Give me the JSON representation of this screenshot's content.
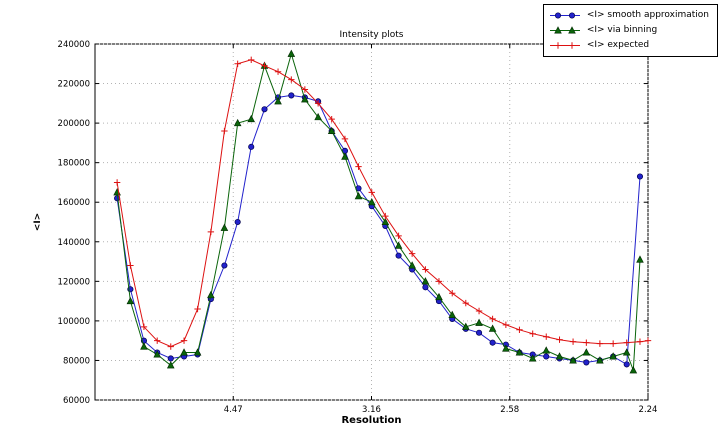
{
  "chart_data": {
    "type": "line",
    "title": "Intensity plots",
    "xlabel": "Resolution",
    "ylabel": "<I>",
    "grid": true,
    "legend_position": "upper right outside plot",
    "x_axis_unit": "reciprocal resolution (linear in 1/d^2), labels show d in Angstrom",
    "x_range": [
      0,
      0.2
    ],
    "y_range": [
      60000,
      240000
    ],
    "x_ticks": [
      {
        "x": 0.05,
        "label": "4.47"
      },
      {
        "x": 0.1,
        "label": "3.16"
      },
      {
        "x": 0.15,
        "label": "2.58"
      },
      {
        "x": 0.2,
        "label": "2.24"
      }
    ],
    "y_ticks": [
      {
        "y": 60000,
        "label": "60000"
      },
      {
        "y": 80000,
        "label": "80000"
      },
      {
        "y": 100000,
        "label": "100000"
      },
      {
        "y": 120000,
        "label": "120000"
      },
      {
        "y": 140000,
        "label": "140000"
      },
      {
        "y": 160000,
        "label": "160000"
      },
      {
        "y": 180000,
        "label": "180000"
      },
      {
        "y": 200000,
        "label": "200000"
      },
      {
        "y": 220000,
        "label": "220000"
      },
      {
        "y": 240000,
        "label": "240000"
      }
    ],
    "grid_color": "#b3b3b3",
    "series": [
      {
        "name": "smooth",
        "label": "<I> smooth approximation",
        "color": "#2222cc",
        "marker": "circle",
        "points": [
          [
            0.008,
            162000
          ],
          [
            0.0128,
            116000
          ],
          [
            0.0177,
            90000
          ],
          [
            0.0225,
            84000
          ],
          [
            0.0274,
            81000
          ],
          [
            0.0322,
            82000
          ],
          [
            0.0371,
            83000
          ],
          [
            0.0419,
            111000
          ],
          [
            0.0468,
            128000
          ],
          [
            0.0516,
            150000
          ],
          [
            0.0565,
            188000
          ],
          [
            0.0613,
            207000
          ],
          [
            0.0662,
            213000
          ],
          [
            0.071,
            214000
          ],
          [
            0.0759,
            213000
          ],
          [
            0.0807,
            211000
          ],
          [
            0.0856,
            196000
          ],
          [
            0.0904,
            186000
          ],
          [
            0.0953,
            167000
          ],
          [
            0.1001,
            158000
          ],
          [
            0.105,
            148000
          ],
          [
            0.1098,
            133000
          ],
          [
            0.1147,
            126000
          ],
          [
            0.1195,
            117000
          ],
          [
            0.1244,
            110000
          ],
          [
            0.1292,
            101000
          ],
          [
            0.1341,
            96000
          ],
          [
            0.1389,
            94000
          ],
          [
            0.1438,
            89000
          ],
          [
            0.1486,
            88000
          ],
          [
            0.1535,
            84000
          ],
          [
            0.1583,
            83000
          ],
          [
            0.1632,
            82000
          ],
          [
            0.168,
            81000
          ],
          [
            0.1729,
            80000
          ],
          [
            0.1777,
            79000
          ],
          [
            0.1826,
            80000
          ],
          [
            0.1874,
            82000
          ],
          [
            0.1923,
            78000
          ],
          [
            0.1971,
            173000
          ]
        ]
      },
      {
        "name": "binning",
        "label": "<I> via binning",
        "color": "#0a640a",
        "marker": "triangle",
        "points": [
          [
            0.008,
            165000
          ],
          [
            0.0128,
            110000
          ],
          [
            0.0177,
            87000
          ],
          [
            0.0225,
            83000
          ],
          [
            0.0274,
            77500
          ],
          [
            0.0322,
            84000
          ],
          [
            0.0371,
            84000
          ],
          [
            0.0419,
            113000
          ],
          [
            0.0468,
            147000
          ],
          [
            0.0516,
            200000
          ],
          [
            0.0565,
            202000
          ],
          [
            0.0613,
            229000
          ],
          [
            0.0662,
            211000
          ],
          [
            0.071,
            235000
          ],
          [
            0.0759,
            212000
          ],
          [
            0.0807,
            203000
          ],
          [
            0.0856,
            196000
          ],
          [
            0.0904,
            183000
          ],
          [
            0.0953,
            163000
          ],
          [
            0.1001,
            160000
          ],
          [
            0.105,
            150000
          ],
          [
            0.1098,
            138000
          ],
          [
            0.1147,
            128000
          ],
          [
            0.1195,
            120000
          ],
          [
            0.1244,
            112000
          ],
          [
            0.1292,
            103000
          ],
          [
            0.1341,
            97000
          ],
          [
            0.1389,
            99000
          ],
          [
            0.1438,
            96000
          ],
          [
            0.1486,
            86000
          ],
          [
            0.1535,
            84000
          ],
          [
            0.1583,
            81000
          ],
          [
            0.1632,
            85000
          ],
          [
            0.168,
            82000
          ],
          [
            0.1729,
            80000
          ],
          [
            0.1777,
            84000
          ],
          [
            0.1826,
            80000
          ],
          [
            0.1874,
            82000
          ],
          [
            0.1923,
            84000
          ],
          [
            0.1947,
            75000
          ],
          [
            0.1971,
            131000
          ]
        ]
      },
      {
        "name": "expected",
        "label": "<I> expected",
        "color": "#dd1111",
        "marker": "plus",
        "points": [
          [
            0.008,
            170000
          ],
          [
            0.0128,
            128000
          ],
          [
            0.0177,
            97000
          ],
          [
            0.0225,
            90000
          ],
          [
            0.0274,
            87000
          ],
          [
            0.0322,
            90000
          ],
          [
            0.0371,
            106000
          ],
          [
            0.0419,
            145000
          ],
          [
            0.0468,
            196000
          ],
          [
            0.0516,
            230000
          ],
          [
            0.0565,
            232000
          ],
          [
            0.0613,
            229000
          ],
          [
            0.0662,
            226000
          ],
          [
            0.071,
            222000
          ],
          [
            0.0759,
            217000
          ],
          [
            0.0807,
            210000
          ],
          [
            0.0856,
            202000
          ],
          [
            0.0904,
            192000
          ],
          [
            0.0953,
            178000
          ],
          [
            0.1001,
            165000
          ],
          [
            0.105,
            153000
          ],
          [
            0.1098,
            143000
          ],
          [
            0.1147,
            134000
          ],
          [
            0.1195,
            126000
          ],
          [
            0.1244,
            120000
          ],
          [
            0.1292,
            114000
          ],
          [
            0.1341,
            109000
          ],
          [
            0.1389,
            105000
          ],
          [
            0.1438,
            101000
          ],
          [
            0.1486,
            98000
          ],
          [
            0.1535,
            95500
          ],
          [
            0.1583,
            93500
          ],
          [
            0.1632,
            92000
          ],
          [
            0.168,
            90500
          ],
          [
            0.1729,
            89500
          ],
          [
            0.1777,
            89000
          ],
          [
            0.1826,
            88500
          ],
          [
            0.1874,
            88500
          ],
          [
            0.1923,
            89000
          ],
          [
            0.1971,
            89500
          ],
          [
            0.2,
            90000
          ]
        ]
      }
    ]
  }
}
